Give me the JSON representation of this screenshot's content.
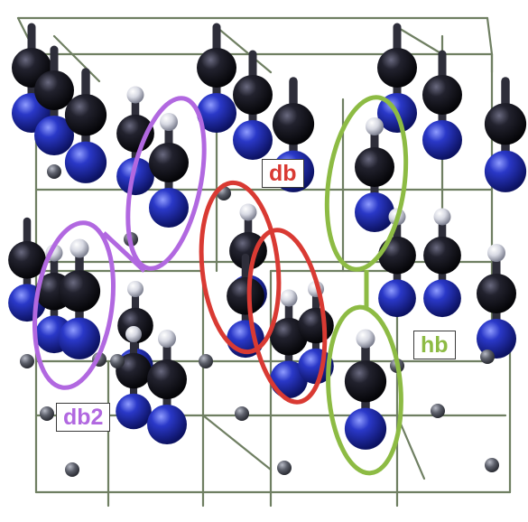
{
  "colors": {
    "background": "#ffffff",
    "lattice_line": "#6f7f62",
    "carbon": "#15151f",
    "nitrogen": "#2a38c8",
    "hydrogen": "#d6d8e2",
    "small_atom": "#5c5f6a",
    "db_highlight": "#d93a33",
    "db2_highlight": "#b168e0",
    "hb_highlight": "#8dbb44"
  },
  "labels": {
    "db": "db",
    "db2": "db2",
    "hb": "hb"
  },
  "atom_types": [
    "hydrogen",
    "carbon",
    "nitrogen"
  ]
}
